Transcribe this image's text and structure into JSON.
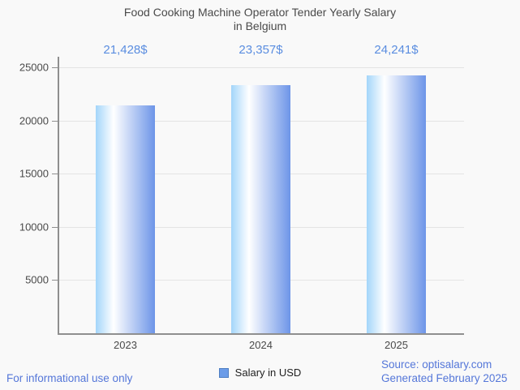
{
  "title": {
    "line1": "Food Cooking Machine Operator Tender Yearly Salary",
    "line2": "in Belgium"
  },
  "chart_data": {
    "type": "bar",
    "title": "Food Cooking Machine Operator Tender Yearly Salary in Belgium",
    "categories": [
      "2023",
      "2024",
      "2025"
    ],
    "values": [
      21428,
      23357,
      24241
    ],
    "value_labels": [
      "21,428$",
      "23,357$",
      "24,241$"
    ],
    "series": [
      {
        "name": "Salary in USD",
        "values": [
          21428,
          23357,
          24241
        ]
      }
    ],
    "xlabel": "",
    "ylabel": "",
    "ylim": [
      0,
      25000
    ],
    "yticks": [
      5000,
      10000,
      15000,
      20000,
      25000
    ],
    "grid": true,
    "legend_position": "bottom",
    "bar_gradient": [
      "#a3d5fa",
      "#ffffff",
      "#6d95e8"
    ]
  },
  "legend": {
    "label": "Salary in USD",
    "swatch_color": "#6c9ce8"
  },
  "footer": {
    "left": "For informational use only",
    "source": "Source: optisalary.com",
    "generated": "Generated February 2025"
  },
  "colors": {
    "background": "#f9f9f9",
    "title_text": "#4a4a4a",
    "value_label": "#5a8de0",
    "axis_label": "#4a4a4a",
    "gridline": "#e4e4e4",
    "axis_line": "#8f8f8f",
    "footer_text": "#5577d9"
  }
}
